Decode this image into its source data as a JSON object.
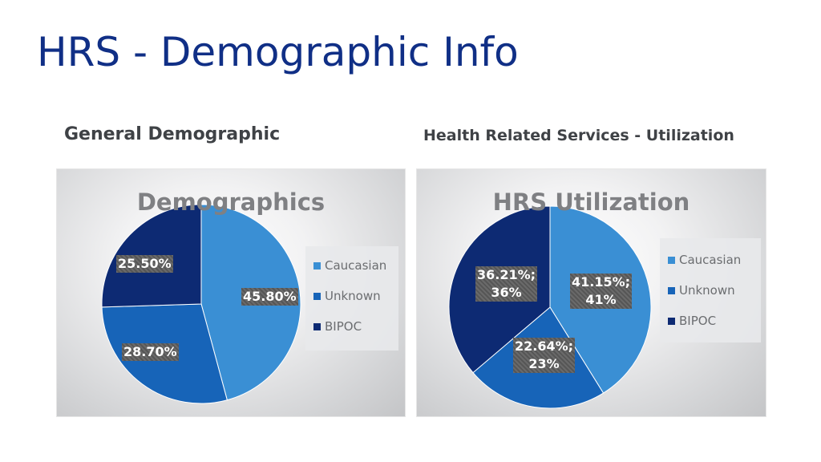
{
  "slide": {
    "title": "HRS - Demographic Info",
    "left_subtitle": "General Demographic",
    "right_subtitle": "Health Related Services - Utilization"
  },
  "colors": {
    "caucasian": "#3a8fd4",
    "unknown": "#1764b8",
    "bipoc": "#0d2a73"
  },
  "chart_data": [
    {
      "type": "pie",
      "title": "Demographics",
      "categories": [
        "Caucasian",
        "Unknown",
        "BIPOC"
      ],
      "values": [
        45.8,
        28.7,
        25.5
      ],
      "data_labels": [
        "45.80%",
        "28.70%",
        "25.50%"
      ],
      "legend_position": "right"
    },
    {
      "type": "pie",
      "title": "HRS Utilization",
      "categories": [
        "Caucasian",
        "Unknown",
        "BIPOC"
      ],
      "values": [
        41.15,
        22.64,
        36.21
      ],
      "data_labels": [
        [
          "41.15%;",
          "41%"
        ],
        [
          "22.64%;",
          "23%"
        ],
        [
          "36.21%;",
          "36%"
        ]
      ],
      "legend_position": "right"
    }
  ]
}
